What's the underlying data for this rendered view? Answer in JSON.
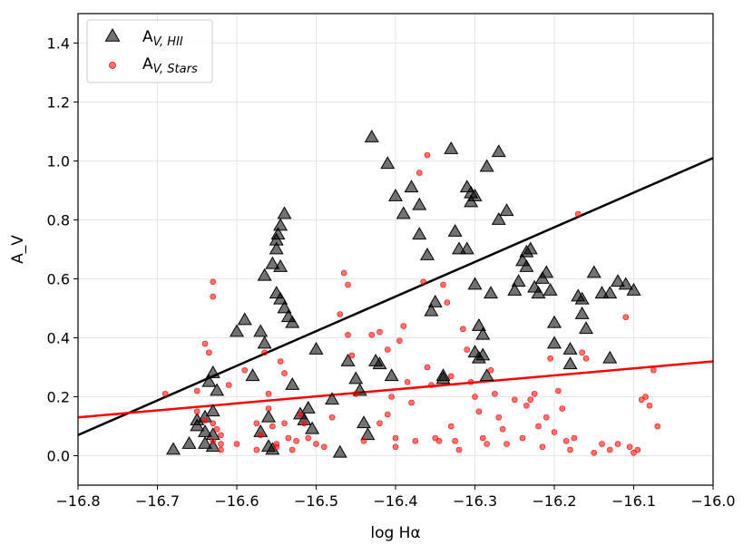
{
  "chart_data": {
    "type": "scatter",
    "title": "",
    "xlabel": "log Hα",
    "ylabel": "A_V",
    "xlim": [
      -16.8,
      -16.0
    ],
    "ylim": [
      -0.1,
      1.5
    ],
    "xticks": [
      -16.8,
      -16.7,
      -16.6,
      -16.5,
      -16.4,
      -16.3,
      -16.2,
      -16.1,
      -16.0
    ],
    "xtick_labels": [
      "−16.8",
      "−16.7",
      "−16.6",
      "−16.5",
      "−16.4",
      "−16.3",
      "−16.2",
      "−16.1",
      "−16.0"
    ],
    "yticks": [
      0.0,
      0.2,
      0.4,
      0.6,
      0.8,
      1.0,
      1.2,
      1.4
    ],
    "ytick_labels": [
      "0.0",
      "0.2",
      "0.4",
      "0.6",
      "0.8",
      "1.0",
      "1.2",
      "1.4"
    ],
    "grid": true,
    "legend_position": "top-left",
    "series": [
      {
        "name": "A_V,HII",
        "legend_main": "A",
        "legend_sub": "V, HII",
        "marker": "triangle",
        "color": "#000000",
        "points": [
          [
            -16.68,
            0.02
          ],
          [
            -16.66,
            0.04
          ],
          [
            -16.65,
            0.12
          ],
          [
            -16.65,
            0.1
          ],
          [
            -16.64,
            0.13
          ],
          [
            -16.64,
            0.08
          ],
          [
            -16.64,
            0.04
          ],
          [
            -16.63,
            0.07
          ],
          [
            -16.63,
            0.15
          ],
          [
            -16.635,
            0.25
          ],
          [
            -16.63,
            0.28
          ],
          [
            -16.625,
            0.22
          ],
          [
            -16.63,
            0.03
          ],
          [
            -16.6,
            0.42
          ],
          [
            -16.59,
            0.46
          ],
          [
            -16.58,
            0.27
          ],
          [
            -16.57,
            0.08
          ],
          [
            -16.57,
            0.42
          ],
          [
            -16.565,
            0.38
          ],
          [
            -16.56,
            0.13
          ],
          [
            -16.56,
            0.03
          ],
          [
            -16.555,
            0.02
          ],
          [
            -16.565,
            0.61
          ],
          [
            -16.555,
            0.65
          ],
          [
            -16.55,
            0.7
          ],
          [
            -16.55,
            0.73
          ],
          [
            -16.548,
            0.75
          ],
          [
            -16.545,
            0.78
          ],
          [
            -16.54,
            0.82
          ],
          [
            -16.545,
            0.64
          ],
          [
            -16.55,
            0.55
          ],
          [
            -16.545,
            0.53
          ],
          [
            -16.54,
            0.5
          ],
          [
            -16.535,
            0.47
          ],
          [
            -16.53,
            0.45
          ],
          [
            -16.53,
            0.24
          ],
          [
            -16.52,
            0.14
          ],
          [
            -16.515,
            0.12
          ],
          [
            -16.51,
            0.16
          ],
          [
            -16.505,
            0.09
          ],
          [
            -16.5,
            0.36
          ],
          [
            -16.48,
            0.19
          ],
          [
            -16.47,
            0.01
          ],
          [
            -16.46,
            0.32
          ],
          [
            -16.45,
            0.26
          ],
          [
            -16.445,
            0.22
          ],
          [
            -16.44,
            0.11
          ],
          [
            -16.435,
            0.07
          ],
          [
            -16.43,
            1.08
          ],
          [
            -16.425,
            0.32
          ],
          [
            -16.42,
            0.31
          ],
          [
            -16.41,
            0.99
          ],
          [
            -16.4,
            0.88
          ],
          [
            -16.405,
            0.27
          ],
          [
            -16.39,
            0.82
          ],
          [
            -16.38,
            0.91
          ],
          [
            -16.37,
            0.85
          ],
          [
            -16.37,
            0.75
          ],
          [
            -16.36,
            0.68
          ],
          [
            -16.355,
            0.49
          ],
          [
            -16.35,
            0.52
          ],
          [
            -16.34,
            0.26
          ],
          [
            -16.34,
            0.27
          ],
          [
            -16.33,
            1.04
          ],
          [
            -16.325,
            0.76
          ],
          [
            -16.32,
            0.7
          ],
          [
            -16.31,
            0.7
          ],
          [
            -16.31,
            0.91
          ],
          [
            -16.305,
            0.89
          ],
          [
            -16.3,
            0.88
          ],
          [
            -16.305,
            0.86
          ],
          [
            -16.3,
            0.58
          ],
          [
            -16.295,
            0.44
          ],
          [
            -16.29,
            0.41
          ],
          [
            -16.3,
            0.35
          ],
          [
            -16.295,
            0.33
          ],
          [
            -16.285,
            0.98
          ],
          [
            -16.28,
            0.55
          ],
          [
            -16.27,
            1.03
          ],
          [
            -16.27,
            0.8
          ],
          [
            -16.26,
            0.83
          ],
          [
            -16.25,
            0.56
          ],
          [
            -16.245,
            0.59
          ],
          [
            -16.24,
            0.66
          ],
          [
            -16.235,
            0.69
          ],
          [
            -16.23,
            0.7
          ],
          [
            -16.235,
            0.64
          ],
          [
            -16.225,
            0.57
          ],
          [
            -16.22,
            0.55
          ],
          [
            -16.215,
            0.6
          ],
          [
            -16.21,
            0.62
          ],
          [
            -16.205,
            0.56
          ],
          [
            -16.2,
            0.45
          ],
          [
            -16.18,
            0.36
          ],
          [
            -16.18,
            0.31
          ],
          [
            -16.17,
            0.54
          ],
          [
            -16.165,
            0.53
          ],
          [
            -16.165,
            0.48
          ],
          [
            -16.16,
            0.43
          ],
          [
            -16.15,
            0.62
          ],
          [
            -16.14,
            0.55
          ],
          [
            -16.13,
            0.55
          ],
          [
            -16.12,
            0.59
          ],
          [
            -16.11,
            0.58
          ],
          [
            -16.1,
            0.56
          ],
          [
            -16.29,
            0.34
          ],
          [
            -16.13,
            0.33
          ],
          [
            -16.2,
            0.38
          ],
          [
            -16.285,
            0.27
          ]
        ]
      },
      {
        "name": "A_V,Stars",
        "legend_main": "A",
        "legend_sub": "V, Stars",
        "marker": "circle",
        "color": "#ff0000",
        "points": [
          [
            -16.69,
            0.21
          ],
          [
            -16.65,
            0.15
          ],
          [
            -16.65,
            0.22
          ],
          [
            -16.64,
            0.38
          ],
          [
            -16.635,
            0.35
          ],
          [
            -16.63,
            0.59
          ],
          [
            -16.63,
            0.54
          ],
          [
            -16.64,
            0.12
          ],
          [
            -16.63,
            0.05
          ],
          [
            -16.625,
            0.09
          ],
          [
            -16.62,
            0.04
          ],
          [
            -16.62,
            0.02
          ],
          [
            -16.62,
            0.07
          ],
          [
            -16.63,
            0.11
          ],
          [
            -16.61,
            0.24
          ],
          [
            -16.6,
            0.04
          ],
          [
            -16.59,
            0.29
          ],
          [
            -16.575,
            0.11
          ],
          [
            -16.575,
            0.02
          ],
          [
            -16.57,
            0.07
          ],
          [
            -16.565,
            0.35
          ],
          [
            -16.56,
            0.21
          ],
          [
            -16.56,
            0.16
          ],
          [
            -16.555,
            0.1
          ],
          [
            -16.55,
            0.04
          ],
          [
            -16.55,
            0.03
          ],
          [
            -16.545,
            0.32
          ],
          [
            -16.54,
            0.28
          ],
          [
            -16.54,
            0.11
          ],
          [
            -16.535,
            0.06
          ],
          [
            -16.53,
            0.02
          ],
          [
            -16.525,
            0.05
          ],
          [
            -16.52,
            0.14
          ],
          [
            -16.515,
            0.11
          ],
          [
            -16.51,
            0.06
          ],
          [
            -16.5,
            0.04
          ],
          [
            -16.49,
            0.03
          ],
          [
            -16.48,
            0.13
          ],
          [
            -16.47,
            0.48
          ],
          [
            -16.465,
            0.62
          ],
          [
            -16.46,
            0.58
          ],
          [
            -16.46,
            0.41
          ],
          [
            -16.455,
            0.34
          ],
          [
            -16.45,
            0.21
          ],
          [
            -16.44,
            0.05
          ],
          [
            -16.43,
            0.41
          ],
          [
            -16.42,
            0.42
          ],
          [
            -16.42,
            0.11
          ],
          [
            -16.41,
            0.36
          ],
          [
            -16.41,
            0.14
          ],
          [
            -16.405,
            0.2
          ],
          [
            -16.4,
            0.06
          ],
          [
            -16.4,
            0.03
          ],
          [
            -16.395,
            0.39
          ],
          [
            -16.39,
            0.44
          ],
          [
            -16.385,
            0.25
          ],
          [
            -16.38,
            0.18
          ],
          [
            -16.375,
            0.05
          ],
          [
            -16.37,
            0.96
          ],
          [
            -16.365,
            0.59
          ],
          [
            -16.36,
            1.02
          ],
          [
            -16.36,
            0.3
          ],
          [
            -16.355,
            0.24
          ],
          [
            -16.35,
            0.06
          ],
          [
            -16.345,
            0.05
          ],
          [
            -16.34,
            0.58
          ],
          [
            -16.335,
            0.52
          ],
          [
            -16.33,
            0.27
          ],
          [
            -16.33,
            0.1
          ],
          [
            -16.325,
            0.05
          ],
          [
            -16.32,
            0.02
          ],
          [
            -16.315,
            0.43
          ],
          [
            -16.31,
            0.36
          ],
          [
            -16.305,
            0.25
          ],
          [
            -16.3,
            0.2
          ],
          [
            -16.295,
            0.15
          ],
          [
            -16.29,
            0.06
          ],
          [
            -16.285,
            0.04
          ],
          [
            -16.28,
            0.29
          ],
          [
            -16.275,
            0.21
          ],
          [
            -16.27,
            0.13
          ],
          [
            -16.265,
            0.09
          ],
          [
            -16.26,
            0.04
          ],
          [
            -16.25,
            0.19
          ],
          [
            -16.24,
            0.06
          ],
          [
            -16.235,
            0.17
          ],
          [
            -16.23,
            0.19
          ],
          [
            -16.225,
            0.21
          ],
          [
            -16.22,
            0.1
          ],
          [
            -16.215,
            0.03
          ],
          [
            -16.21,
            0.13
          ],
          [
            -16.205,
            0.33
          ],
          [
            -16.2,
            0.08
          ],
          [
            -16.195,
            0.22
          ],
          [
            -16.19,
            0.16
          ],
          [
            -16.185,
            0.05
          ],
          [
            -16.18,
            0.02
          ],
          [
            -16.175,
            0.06
          ],
          [
            -16.17,
            0.82
          ],
          [
            -16.165,
            0.35
          ],
          [
            -16.16,
            0.33
          ],
          [
            -16.15,
            0.01
          ],
          [
            -16.14,
            0.04
          ],
          [
            -16.13,
            0.02
          ],
          [
            -16.12,
            0.04
          ],
          [
            -16.11,
            0.47
          ],
          [
            -16.105,
            0.03
          ],
          [
            -16.1,
            0.01
          ],
          [
            -16.095,
            0.02
          ],
          [
            -16.09,
            0.19
          ],
          [
            -16.085,
            0.2
          ],
          [
            -16.08,
            0.17
          ],
          [
            -16.075,
            0.29
          ],
          [
            -16.07,
            0.1
          ]
        ]
      }
    ],
    "fit_lines": [
      {
        "name": "fit HII",
        "color": "#000000",
        "x": [
          -16.8,
          -16.0
        ],
        "y": [
          0.07,
          1.01
        ]
      },
      {
        "name": "fit Stars",
        "color": "#ff0000",
        "x": [
          -16.8,
          -16.0
        ],
        "y": [
          0.13,
          0.32
        ]
      }
    ]
  }
}
